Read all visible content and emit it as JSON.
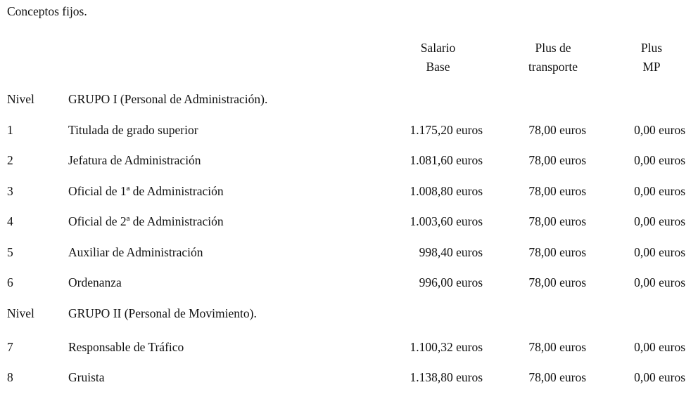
{
  "page": {
    "title": "Conceptos fijos."
  },
  "colors": {
    "text": "#111111",
    "background": "#ffffff"
  },
  "table": {
    "headers": {
      "salario_line1": "Salario",
      "salario_line2": "Base",
      "transporte_line1": "Plus de",
      "transporte_line2": "transporte",
      "mp_line1": "Plus",
      "mp_line2": "MP"
    },
    "rows": [
      {
        "nivel": "Nivel",
        "concepto": "GRUPO I (Personal de Administración).",
        "salario": "",
        "transporte": "",
        "mp": ""
      },
      {
        "nivel": "1",
        "concepto": "Titulada de grado superior",
        "salario": "1.175,20 euros",
        "transporte": "78,00 euros",
        "mp": "0,00 euros"
      },
      {
        "nivel": "2",
        "concepto": "Jefatura de Administración",
        "salario": "1.081,60 euros",
        "transporte": "78,00 euros",
        "mp": "0,00 euros"
      },
      {
        "nivel": "3",
        "concepto": "Oficial de 1ª de Administración",
        "salario": "1.008,80 euros",
        "transporte": "78,00 euros",
        "mp": "0,00 euros"
      },
      {
        "nivel": "4",
        "concepto": "Oficial de 2ª de Administración",
        "salario": "1.003,60 euros",
        "transporte": "78,00 euros",
        "mp": "0,00 euros"
      },
      {
        "nivel": "5",
        "concepto": "Auxiliar de Administración",
        "salario": "998,40 euros",
        "transporte": "78,00 euros",
        "mp": "0,00 euros"
      },
      {
        "nivel": "6",
        "concepto": "Ordenanza",
        "salario": "996,00 euros",
        "transporte": "78,00 euros",
        "mp": "0,00 euros"
      },
      {
        "nivel": "Nivel",
        "concepto": "GRUPO II (Personal de Movimiento).",
        "salario": "",
        "transporte": "",
        "mp": ""
      },
      {
        "nivel": "7",
        "concepto": "Responsable de Tráfico",
        "salario": "1.100,32 euros",
        "transporte": "78,00 euros",
        "mp": "0,00 euros"
      },
      {
        "nivel": "8",
        "concepto": "Gruista",
        "salario": "1.138,80 euros",
        "transporte": "78,00 euros",
        "mp": "0,00 euros"
      }
    ]
  }
}
